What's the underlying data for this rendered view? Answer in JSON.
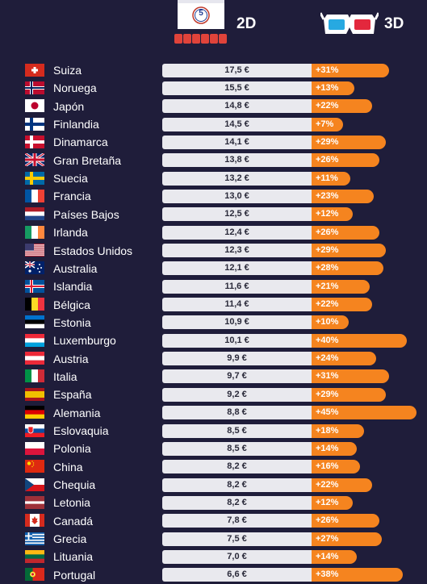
{
  "header": {
    "label_2d": "2D",
    "label_3d": "3D",
    "cinema_badge": "5"
  },
  "colors": {
    "background": "#1f1d3a",
    "bar_2d": "#e9e9ee",
    "bar_3d": "#f5841f"
  },
  "chart_data": {
    "type": "bar",
    "orientation": "horizontal",
    "grid": false,
    "series": [
      {
        "name": "2D",
        "values": [
          17.5,
          15.5,
          14.8,
          14.5,
          14.1,
          13.8,
          13.2,
          13.0,
          12.5,
          12.4,
          12.3,
          12.1,
          11.6,
          11.4,
          10.9,
          10.1,
          9.9,
          9.7,
          9.2,
          8.8,
          8.5,
          8.5,
          8.2,
          8.2,
          8.2,
          7.8,
          7.5,
          7.0,
          6.6
        ]
      },
      {
        "name": "3D",
        "values": [
          31,
          13,
          22,
          7,
          29,
          26,
          11,
          23,
          12,
          26,
          29,
          28,
          21,
          22,
          10,
          40,
          24,
          31,
          29,
          45,
          18,
          14,
          16,
          22,
          12,
          26,
          27,
          14,
          38
        ]
      }
    ],
    "rows": [
      {
        "country": "Suiza",
        "flag": "switzerland-flag",
        "price": "17,5 €",
        "surcharge": "+31%"
      },
      {
        "country": "Noruega",
        "flag": "norway-flag",
        "price": "15,5 €",
        "surcharge": "+13%"
      },
      {
        "country": "Japón",
        "flag": "japan-flag",
        "price": "14,8 €",
        "surcharge": "+22%"
      },
      {
        "country": "Finlandia",
        "flag": "finland-flag",
        "price": "14,5 €",
        "surcharge": "+7%"
      },
      {
        "country": "Dinamarca",
        "flag": "denmark-flag",
        "price": "14,1 €",
        "surcharge": "+29%"
      },
      {
        "country": "Gran Bretaña",
        "flag": "uk-flag",
        "price": "13,8 €",
        "surcharge": "+26%"
      },
      {
        "country": "Suecia",
        "flag": "sweden-flag",
        "price": "13,2 €",
        "surcharge": "+11%"
      },
      {
        "country": "Francia",
        "flag": "france-flag",
        "price": "13,0 €",
        "surcharge": "+23%"
      },
      {
        "country": "Países Bajos",
        "flag": "netherlands-flag",
        "price": "12,5 €",
        "surcharge": "+12%"
      },
      {
        "country": "Irlanda",
        "flag": "ireland-flag",
        "price": "12,4 €",
        "surcharge": "+26%"
      },
      {
        "country": "Estados Unidos",
        "flag": "usa-flag",
        "price": "12,3 €",
        "surcharge": "+29%"
      },
      {
        "country": "Australia",
        "flag": "australia-flag",
        "price": "12,1 €",
        "surcharge": "+28%"
      },
      {
        "country": "Islandia",
        "flag": "iceland-flag",
        "price": "11,6 €",
        "surcharge": "+21%"
      },
      {
        "country": "Bélgica",
        "flag": "belgium-flag",
        "price": "11,4 €",
        "surcharge": "+22%"
      },
      {
        "country": "Estonia",
        "flag": "estonia-flag",
        "price": "10,9 €",
        "surcharge": "+10%"
      },
      {
        "country": "Luxemburgo",
        "flag": "luxembourg-flag",
        "price": "10,1 €",
        "surcharge": "+40%"
      },
      {
        "country": "Austria",
        "flag": "austria-flag",
        "price": "9,9 €",
        "surcharge": "+24%"
      },
      {
        "country": "Italia",
        "flag": "italy-flag",
        "price": "9,7 €",
        "surcharge": "+31%"
      },
      {
        "country": "España",
        "flag": "spain-flag",
        "price": "9,2 €",
        "surcharge": "+29%"
      },
      {
        "country": "Alemania",
        "flag": "germany-flag",
        "price": "8,8 €",
        "surcharge": "+45%"
      },
      {
        "country": "Eslovaquia",
        "flag": "slovakia-flag",
        "price": "8,5 €",
        "surcharge": "+18%"
      },
      {
        "country": "Polonia",
        "flag": "poland-flag",
        "price": "8,5 €",
        "surcharge": "+14%"
      },
      {
        "country": "China",
        "flag": "china-flag",
        "price": "8,2 €",
        "surcharge": "+16%"
      },
      {
        "country": "Chequia",
        "flag": "czechia-flag",
        "price": "8,2 €",
        "surcharge": "+22%"
      },
      {
        "country": "Letonia",
        "flag": "latvia-flag",
        "price": "8,2 €",
        "surcharge": "+12%"
      },
      {
        "country": "Canadá",
        "flag": "canada-flag",
        "price": "7,8 €",
        "surcharge": "+26%"
      },
      {
        "country": "Grecia",
        "flag": "greece-flag",
        "price": "7,5 €",
        "surcharge": "+27%"
      },
      {
        "country": "Lituania",
        "flag": "lithuania-flag",
        "price": "7,0 €",
        "surcharge": "+14%"
      },
      {
        "country": "Portugal",
        "flag": "portugal-flag",
        "price": "6,6 €",
        "surcharge": "+38%"
      }
    ]
  }
}
